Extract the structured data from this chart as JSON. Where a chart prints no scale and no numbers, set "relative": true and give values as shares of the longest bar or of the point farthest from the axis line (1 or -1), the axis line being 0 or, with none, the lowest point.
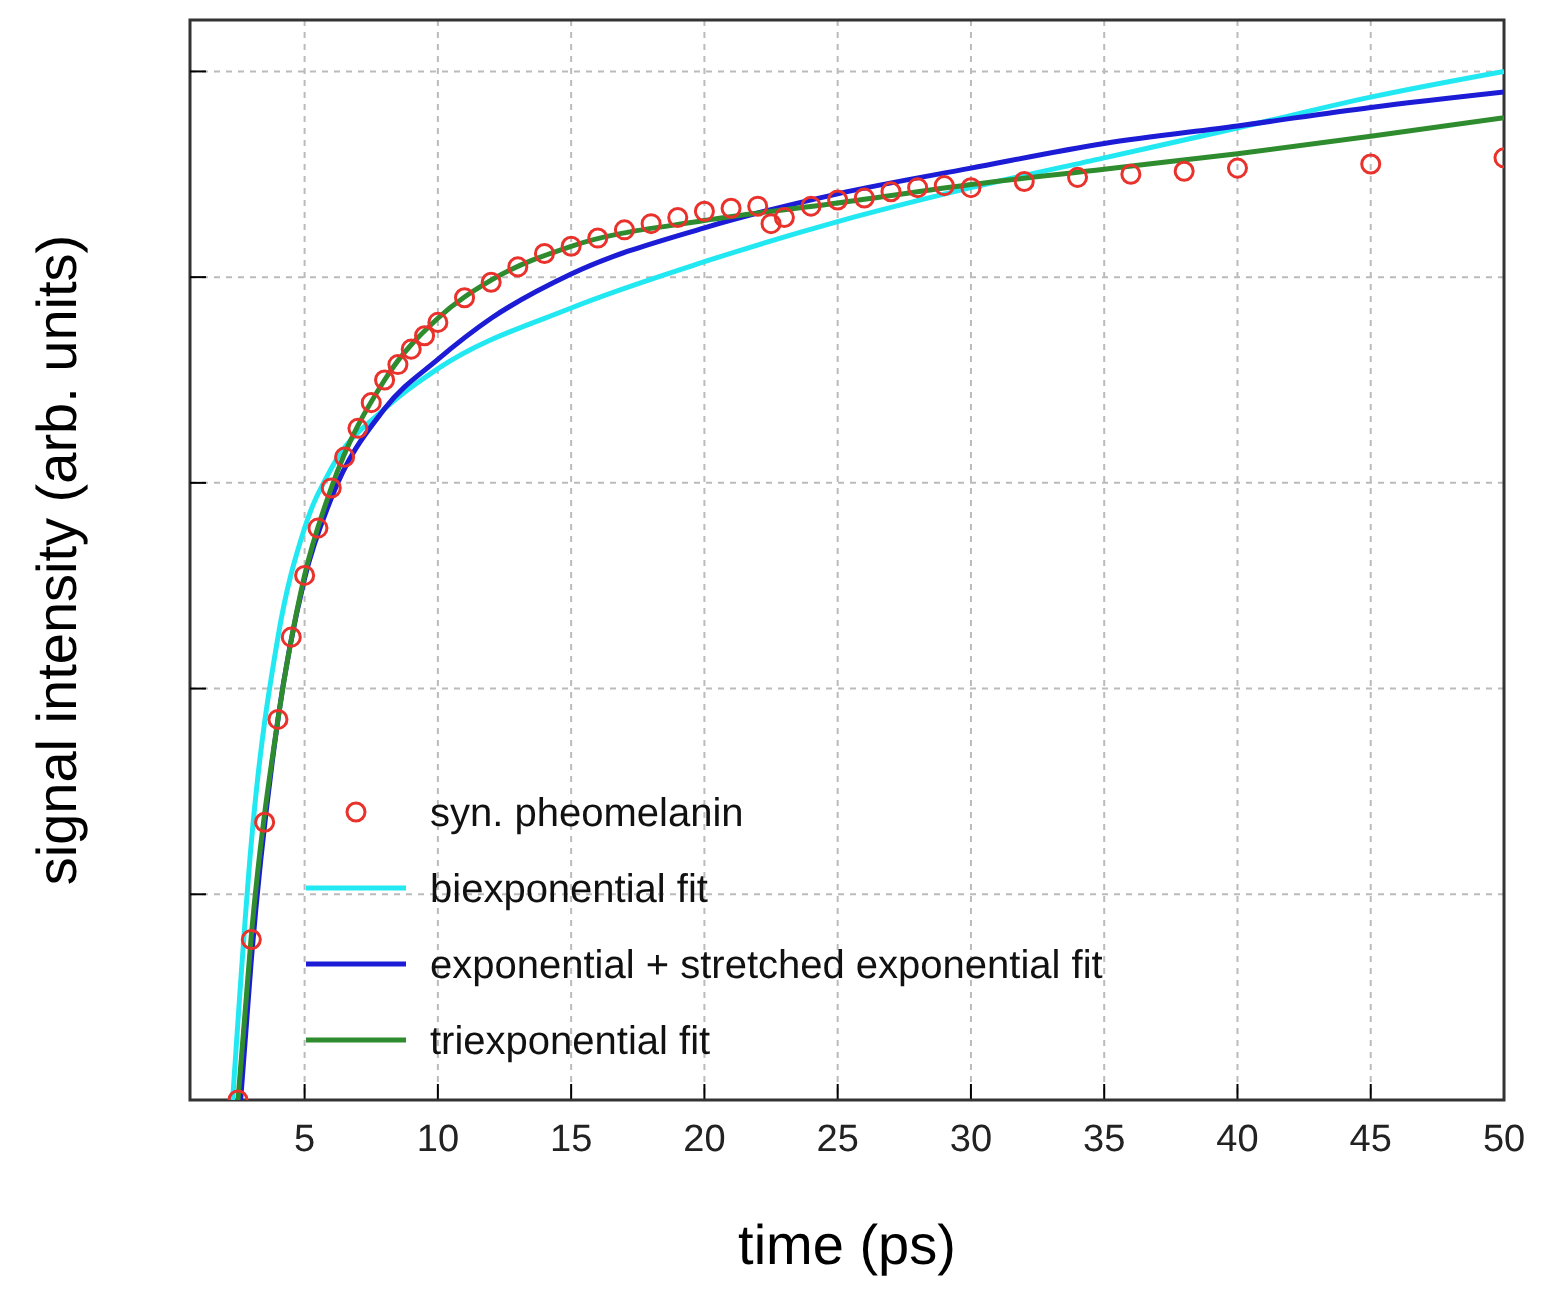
{
  "chart_data": {
    "type": "line",
    "xlabel": "time (ps)",
    "ylabel": "signal intensity (arb. units)",
    "relative": true,
    "xlim": [
      0.7,
      50
    ],
    "xticks": [
      5,
      10,
      15,
      20,
      25,
      30,
      35,
      40,
      45,
      50
    ],
    "grid": true,
    "tick_labels": "x",
    "legend": "bottom left",
    "series": [
      {
        "name": "syn. pheomelanin",
        "type": "scatter",
        "marker": "circle",
        "color": "#e8322b",
        "x": [
          2.5,
          3,
          3.5,
          4,
          4.5,
          5,
          5.5,
          6,
          6.5,
          7,
          7.5,
          8,
          8.5,
          9,
          9.5,
          10,
          11,
          12,
          13,
          14,
          15,
          16,
          17,
          18,
          19,
          20,
          21,
          22,
          22.5,
          23,
          24,
          25,
          26,
          27,
          28,
          29,
          30,
          32,
          34,
          36,
          38,
          40,
          45,
          50
        ],
        "values": [
          0,
          0.156,
          0.27,
          0.37,
          0.45,
          0.51,
          0.556,
          0.595,
          0.625,
          0.653,
          0.678,
          0.7,
          0.715,
          0.73,
          0.743,
          0.756,
          0.78,
          0.795,
          0.81,
          0.823,
          0.83,
          0.838,
          0.846,
          0.852,
          0.858,
          0.864,
          0.867,
          0.869,
          0.852,
          0.858,
          0.869,
          0.875,
          0.877,
          0.883,
          0.887,
          0.889,
          0.887,
          0.893,
          0.897,
          0.9,
          0.903,
          0.906,
          0.91,
          0.916
        ]
      },
      {
        "name": "biexponential fit",
        "color": "#22e8f2",
        "x": [
          2.3,
          3,
          4,
          5,
          6,
          8,
          10,
          15,
          20,
          25,
          30,
          35,
          40,
          45,
          50
        ],
        "values": [
          0,
          0.25,
          0.45,
          0.556,
          0.614,
          0.672,
          0.711,
          0.77,
          0.815,
          0.854,
          0.887,
          0.916,
          0.945,
          0.975,
          1
        ]
      },
      {
        "name": "exponential + stretched exponential fit",
        "color": "#1c1cd6",
        "x": [
          2.6,
          3,
          4,
          5,
          6,
          8,
          10,
          12,
          15,
          20,
          25,
          30,
          35,
          40,
          45,
          50
        ],
        "values": [
          0,
          0.136,
          0.37,
          0.507,
          0.585,
          0.672,
          0.72,
          0.76,
          0.803,
          0.848,
          0.881,
          0.906,
          0.93,
          0.947,
          0.965,
          0.98
        ]
      },
      {
        "name": "triexponential fit",
        "color": "#2e8b2e",
        "x": [
          2.5,
          3,
          4,
          5,
          6,
          8,
          10,
          12,
          15,
          20,
          25,
          30,
          35,
          40,
          45,
          50
        ],
        "values": [
          0,
          0.16,
          0.37,
          0.51,
          0.595,
          0.7,
          0.76,
          0.797,
          0.83,
          0.855,
          0.872,
          0.89,
          0.905,
          0.92,
          0.937,
          0.955
        ]
      }
    ]
  }
}
